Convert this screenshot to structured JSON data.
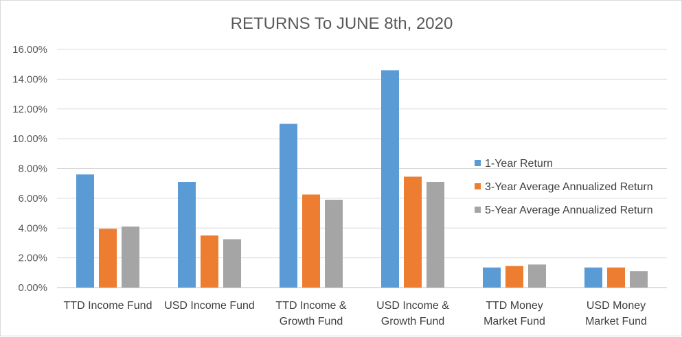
{
  "chart_data": {
    "type": "bar",
    "title": "RETURNS To JUNE 8th, 2020",
    "xlabel": "",
    "ylabel": "",
    "categories": [
      [
        "TTD Income Fund"
      ],
      [
        "USD Income Fund"
      ],
      [
        "TTD Income &",
        "Growth Fund"
      ],
      [
        "USD Income &",
        "Growth Fund"
      ],
      [
        "TTD Money",
        "Market Fund"
      ],
      [
        "USD Money",
        "Market Fund"
      ]
    ],
    "series": [
      {
        "name": "1-Year Return",
        "color": "#5b9bd5",
        "values": [
          7.6,
          7.1,
          11.0,
          14.6,
          1.35,
          1.35
        ]
      },
      {
        "name": "3-Year Average Annualized Return",
        "color": "#ed7d31",
        "values": [
          3.95,
          3.5,
          6.25,
          7.45,
          1.45,
          1.35
        ]
      },
      {
        "name": "5-Year Average Annualized Return",
        "color": "#a5a5a5",
        "values": [
          4.1,
          3.25,
          5.9,
          7.1,
          1.55,
          1.1
        ]
      }
    ],
    "ylim": [
      0,
      16
    ],
    "yticks": [
      "0.00%",
      "2.00%",
      "4.00%",
      "6.00%",
      "8.00%",
      "10.00%",
      "12.00%",
      "14.00%",
      "16.00%"
    ],
    "grid": true,
    "legend_position": "right"
  }
}
